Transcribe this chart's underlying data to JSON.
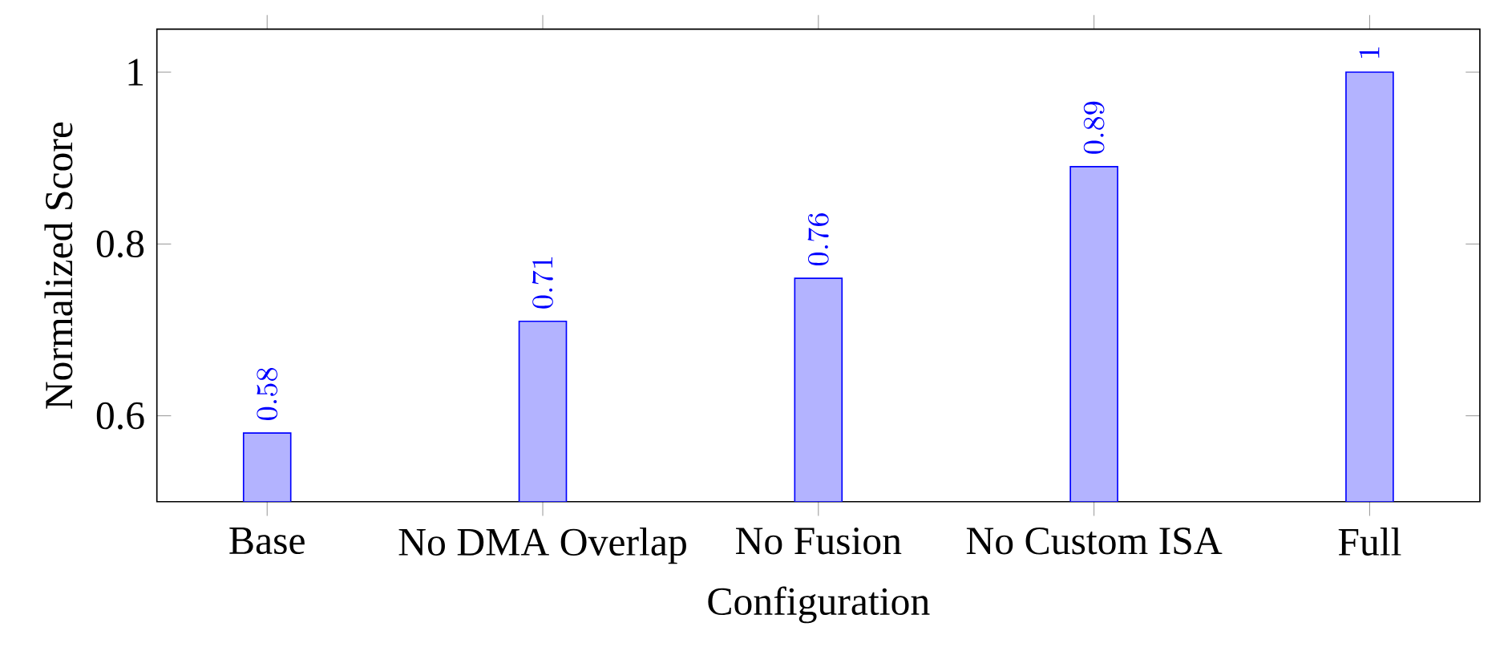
{
  "chart_data": {
    "type": "bar",
    "xlabel": "Configuration",
    "ylabel": "Normalized Score",
    "categories": [
      "Base",
      "No DMA Overlap",
      "No Fusion",
      "No Custom ISA",
      "Full"
    ],
    "values": [
      0.58,
      0.71,
      0.76,
      0.89,
      1
    ],
    "color": "#b3b3ff",
    "ylim": [
      0.5,
      1.05
    ],
    "yticks": [
      0.6,
      0.8,
      1
    ],
    "data_labels": true
  }
}
